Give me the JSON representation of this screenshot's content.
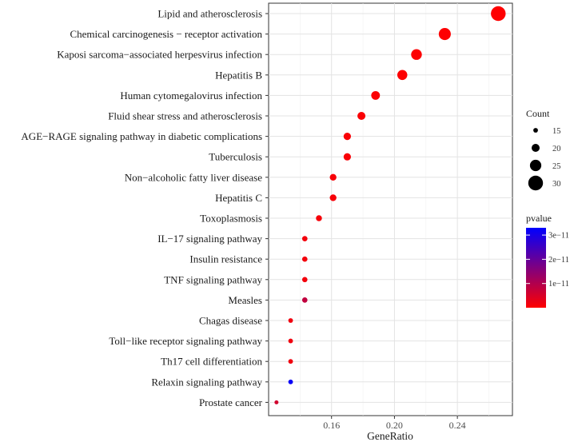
{
  "chart_data": {
    "type": "scatter",
    "title": "",
    "xlabel": "GeneRatio",
    "ylabel": "",
    "xlim": [
      0.12,
      0.275
    ],
    "x_ticks": [
      0.16,
      0.2,
      0.24
    ],
    "x_tick_labels": [
      "0.16",
      "0.20",
      "0.24"
    ],
    "grid": true,
    "categories": [
      "Lipid and atherosclerosis",
      "Chemical carcinogenesis − receptor activation",
      "Kaposi sarcoma−associated herpesvirus infection",
      "Hepatitis B",
      "Human cytomegalovirus infection",
      "Fluid shear stress and atherosclerosis",
      "AGE−RAGE signaling pathway in diabetic complications",
      "Tuberculosis",
      "Non−alcoholic fatty liver disease",
      "Hepatitis C",
      "Toxoplasmosis",
      "IL−17 signaling pathway",
      "Insulin resistance",
      "TNF signaling pathway",
      "Measles",
      "Chagas disease",
      "Toll−like receptor signaling pathway",
      "Th17 cell differentiation",
      "Relaxin signaling pathway",
      "Prostate cancer"
    ],
    "gene_ratio": [
      0.266,
      0.232,
      0.214,
      0.205,
      0.188,
      0.179,
      0.17,
      0.17,
      0.161,
      0.161,
      0.152,
      0.143,
      0.143,
      0.143,
      0.143,
      0.134,
      0.134,
      0.134,
      0.134,
      0.125
    ],
    "count": [
      30,
      26,
      24,
      23,
      21,
      20,
      19,
      19,
      18,
      18,
      17,
      16,
      16,
      16,
      16,
      15,
      15,
      15,
      15,
      14
    ],
    "pvalue": [
      1e-13,
      2e-13,
      3e-13,
      3e-13,
      5e-13,
      6e-13,
      8e-13,
      8e-13,
      1e-12,
      1e-12,
      1.2e-12,
      1.5e-12,
      1.5e-12,
      1.5e-12,
      8e-12,
      2e-12,
      2e-12,
      2e-12,
      3.2e-11,
      6e-12
    ],
    "size_legend": {
      "title": "Count",
      "values": [
        15,
        20,
        25,
        30
      ],
      "labels": [
        "15",
        "20",
        "25",
        "30"
      ]
    },
    "color_legend": {
      "title": "pvalue",
      "min": 0,
      "max": 3.3e-11,
      "ticks": [
        3e-11,
        2e-11,
        1e-11
      ],
      "labels": [
        "3e−11",
        "2e−11",
        "1e−11"
      ],
      "low_color": "#FF0000",
      "high_color": "#0000FF"
    }
  }
}
